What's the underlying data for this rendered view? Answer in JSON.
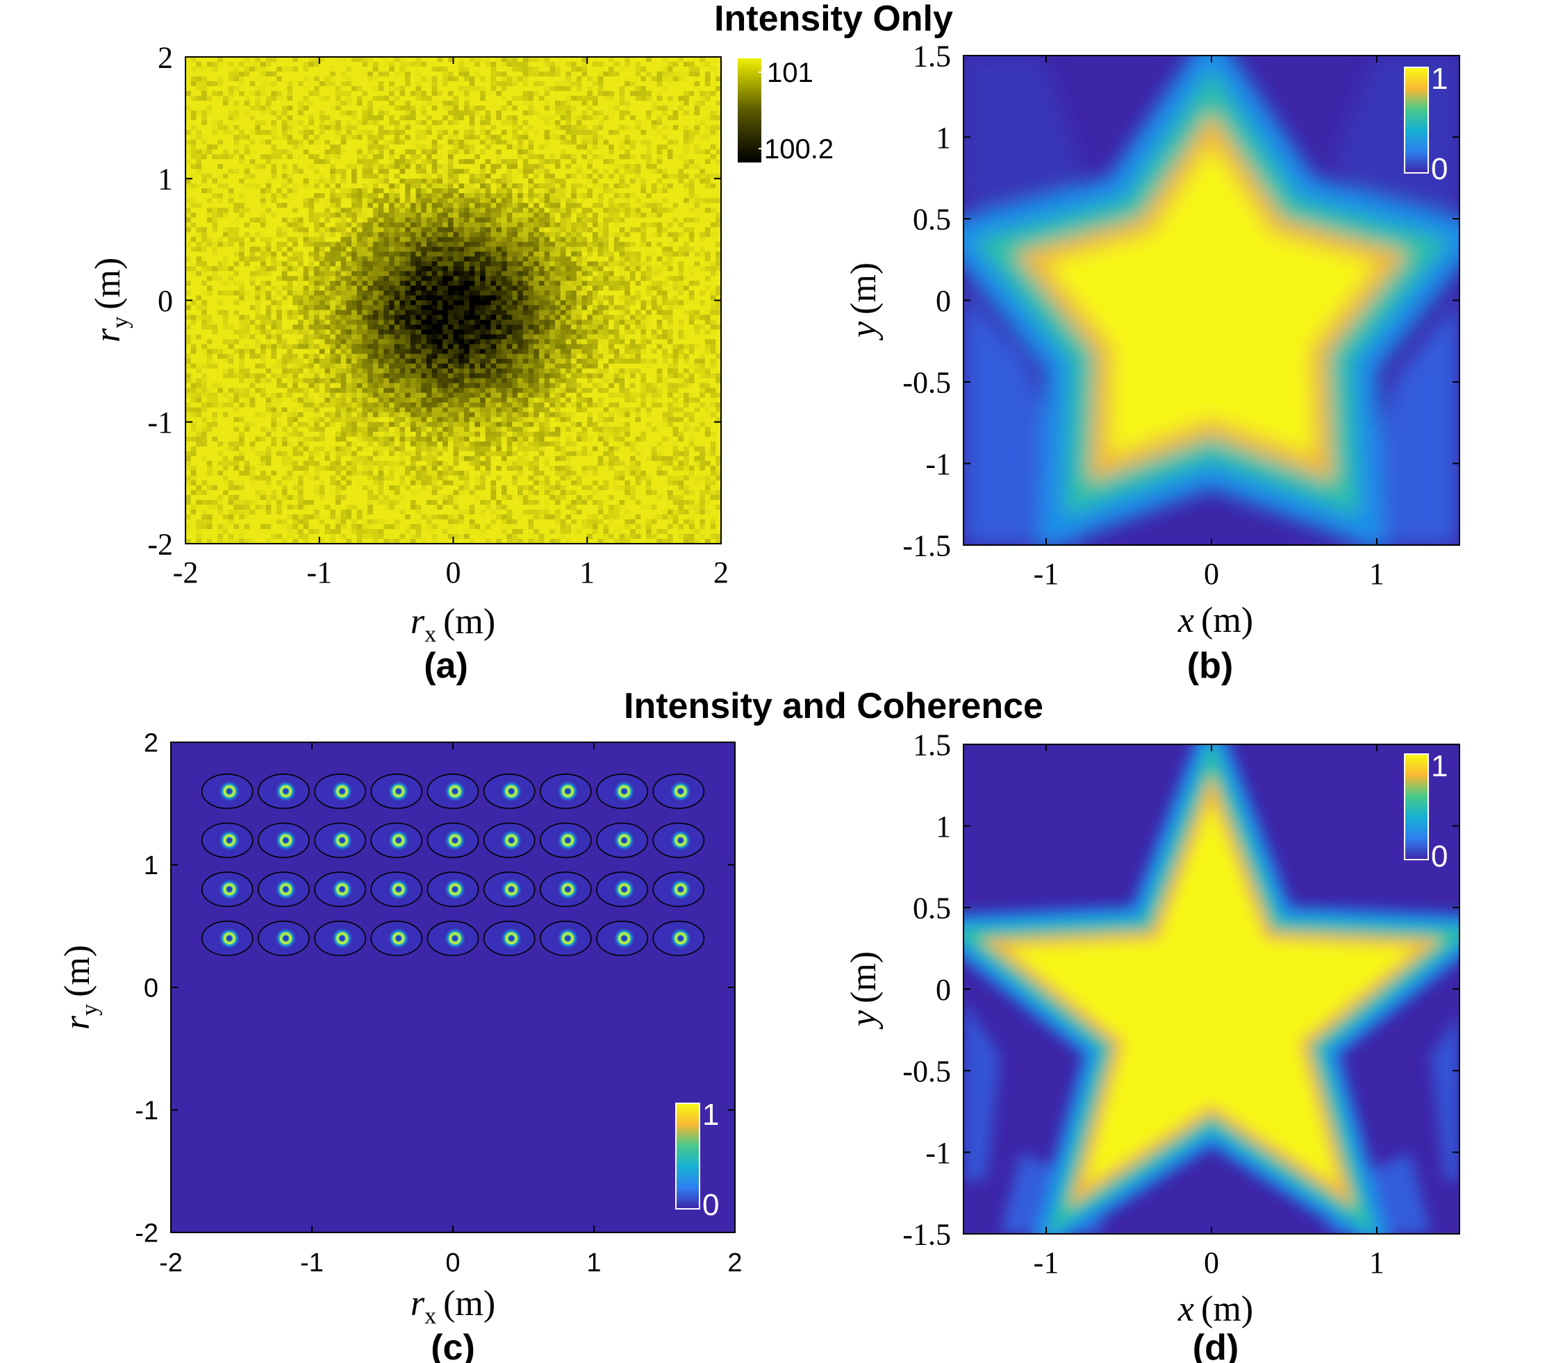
{
  "section_titles": [
    "Intensity Only",
    "Intensity and Coherence"
  ],
  "colors": {
    "parula_dark": "#3e26a8",
    "parula_blue": "#2f7ef0",
    "parula_cyan": "#20b4c8",
    "parula_green": "#80cb58",
    "parula_orange": "#f9b832",
    "parula_yellow": "#f9fb15",
    "hot_yellow": "#e8e800",
    "hot_dark": "#000000"
  },
  "chart_data": [
    {
      "panel": "(a)",
      "type": "heatmap",
      "title": "",
      "xlabel_main": "r",
      "xlabel_sub": "x",
      "xlabel_unit": "(m)",
      "ylabel_main": "r",
      "ylabel_sub": "y",
      "ylabel_unit": "(m)",
      "xlim": [
        -2,
        2
      ],
      "ylim": [
        -2,
        2
      ],
      "xticks": [
        -2,
        -1,
        0,
        1,
        2
      ],
      "yticks": [
        -2,
        -1,
        0,
        1,
        2
      ],
      "colormap": "black-yellow",
      "colorbar": {
        "placement": "outside-right",
        "ticks": [
          "101",
          "100.2"
        ],
        "range": [
          100.2,
          101
        ]
      },
      "field": {
        "kind": "gaussian-dip",
        "center": [
          0,
          -0.1
        ],
        "sigma": 0.55,
        "base": 101,
        "dip": 0.8,
        "noise": 0.15,
        "grid": 100
      }
    },
    {
      "panel": "(b)",
      "type": "heatmap",
      "xlabel_main": "x",
      "xlabel_unit": "(m)",
      "ylabel_main": "y",
      "ylabel_unit": "(m)",
      "xlim": [
        -1.5,
        1.5
      ],
      "ylim": [
        -1.5,
        1.5
      ],
      "xticks": [
        -1,
        0,
        1
      ],
      "yticks": [
        -1.5,
        -1,
        -0.5,
        0,
        0.5,
        1,
        1.5
      ],
      "colormap": "parula",
      "colorbar": {
        "placement": "inside-top-right",
        "ticks": [
          "1",
          "0"
        ],
        "range": [
          0,
          1
        ]
      },
      "field": {
        "kind": "star",
        "center": [
          0,
          -0.1
        ],
        "outer_radius": 1.05,
        "inner_radius": 0.62,
        "blur": 0.22,
        "grid": 60
      }
    },
    {
      "panel": "(c)",
      "type": "heatmap",
      "xlabel_main": "r",
      "xlabel_sub": "x",
      "xlabel_unit": "(m)",
      "ylabel_main": "r",
      "ylabel_sub": "y",
      "ylabel_unit": "(m)",
      "xlim": [
        -2,
        2
      ],
      "ylim": [
        -2,
        2
      ],
      "xticks": [
        -2,
        -1,
        0,
        1,
        2
      ],
      "yticks": [
        -2,
        -1,
        0,
        1,
        2
      ],
      "colormap": "parula",
      "colorbar": {
        "placement": "inside-bottom-right",
        "ticks": [
          "1",
          "0"
        ],
        "range": [
          0,
          1
        ]
      },
      "spots": {
        "columns": [
          -1.6,
          -1.2,
          -0.8,
          -0.4,
          0,
          0.4,
          0.8,
          1.2,
          1.6
        ],
        "rows": [
          1.6,
          1.2,
          0.8,
          0.4
        ],
        "radius_x": 0.18,
        "radius_y": 0.14
      }
    },
    {
      "panel": "(d)",
      "type": "heatmap",
      "xlabel_main": "x",
      "xlabel_unit": "(m)",
      "ylabel_main": "y",
      "ylabel_unit": "(m)",
      "xlim": [
        -1.5,
        1.5
      ],
      "ylim": [
        -1.5,
        1.5
      ],
      "xticks": [
        -1,
        0,
        1
      ],
      "yticks": [
        -1.5,
        -1,
        -0.5,
        0,
        0.5,
        1,
        1.5
      ],
      "colormap": "parula",
      "colorbar": {
        "placement": "inside-top-right",
        "ticks": [
          "1",
          "0"
        ],
        "range": [
          0,
          1
        ]
      },
      "field": {
        "kind": "star",
        "center": [
          0,
          -0.15
        ],
        "outer_radius": 1.3,
        "inner_radius": 0.55,
        "blur": 0.15,
        "grid": 60
      }
    }
  ]
}
